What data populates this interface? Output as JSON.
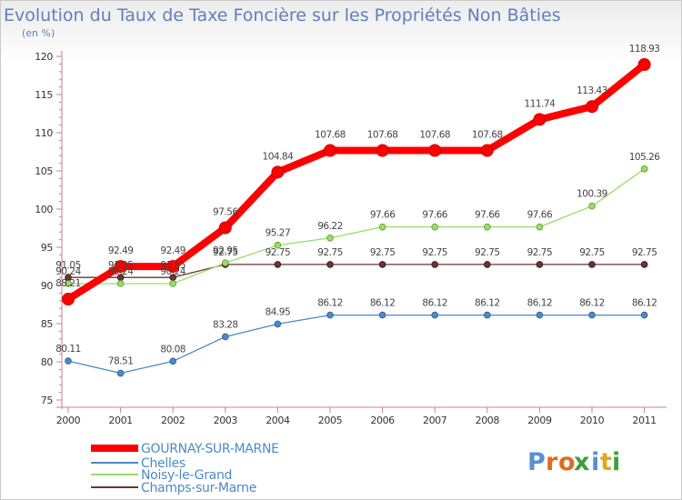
{
  "colors": {
    "title": "#5e80bc",
    "gournay": "#ff0000",
    "chelles": "#4d89c4",
    "noisy": "#99dd66",
    "champs": "#6b3333"
  },
  "chart_data": {
    "type": "line",
    "title": "Evolution du Taux de Taxe Foncière sur les Propriétés Non Bâties",
    "subtitle": "(en %)",
    "xlabel": "",
    "ylabel": "",
    "ylim": [
      75,
      120
    ],
    "yticks": [
      75,
      80,
      85,
      90,
      95,
      100,
      105,
      110,
      115,
      120
    ],
    "x": [
      2000,
      2001,
      2002,
      2003,
      2004,
      2005,
      2006,
      2007,
      2008,
      2009,
      2010,
      2011
    ],
    "legend_position": "bottom-left",
    "series": [
      {
        "name": "GOURNAY-SUR-MARNE",
        "key": "gournay",
        "values": [
          88.21,
          92.49,
          92.49,
          97.56,
          104.84,
          107.68,
          107.68,
          107.68,
          107.68,
          111.74,
          113.43,
          118.93
        ],
        "labels": [
          "88.21",
          "92.49",
          "92.49",
          "97.56",
          "104.84",
          "107.68",
          "107.68",
          "107.68",
          "107.68",
          "111.74",
          "113.43",
          "118.93"
        ]
      },
      {
        "name": "Chelles",
        "key": "chelles",
        "values": [
          80.11,
          78.51,
          80.08,
          83.28,
          84.95,
          86.12,
          86.12,
          86.12,
          86.12,
          86.12,
          86.12,
          86.12
        ],
        "labels": [
          "80.11",
          "78.51",
          "80.08",
          "83.28",
          "84.95",
          "86.12",
          "86.12",
          "86.12",
          "86.12",
          "86.12",
          "86.12",
          "86.12"
        ]
      },
      {
        "name": "Noisy-le-Grand",
        "key": "noisy",
        "values": [
          90.24,
          90.24,
          90.24,
          92.95,
          95.27,
          96.22,
          97.66,
          97.66,
          97.66,
          97.66,
          100.39,
          105.26
        ],
        "labels": [
          "90.24",
          "90.24",
          "90.24",
          "92.95",
          "95.27",
          "96.22",
          "97.66",
          "97.66",
          "97.66",
          "97.66",
          "100.39",
          "105.26"
        ]
      },
      {
        "name": "Champs-sur-Marne",
        "key": "champs",
        "values": [
          91.05,
          91.05,
          91.05,
          92.75,
          92.75,
          92.75,
          92.75,
          92.75,
          92.75,
          92.75,
          92.75,
          92.75
        ],
        "labels": [
          "91.05",
          "91.05",
          "91.05",
          "92.75",
          "92.75",
          "92.75",
          "92.75",
          "92.75",
          "92.75",
          "92.75",
          "92.75",
          "92.75"
        ]
      }
    ]
  },
  "brand": {
    "letters": [
      "P",
      "r",
      "o",
      "x",
      "i",
      "t",
      "i"
    ]
  }
}
